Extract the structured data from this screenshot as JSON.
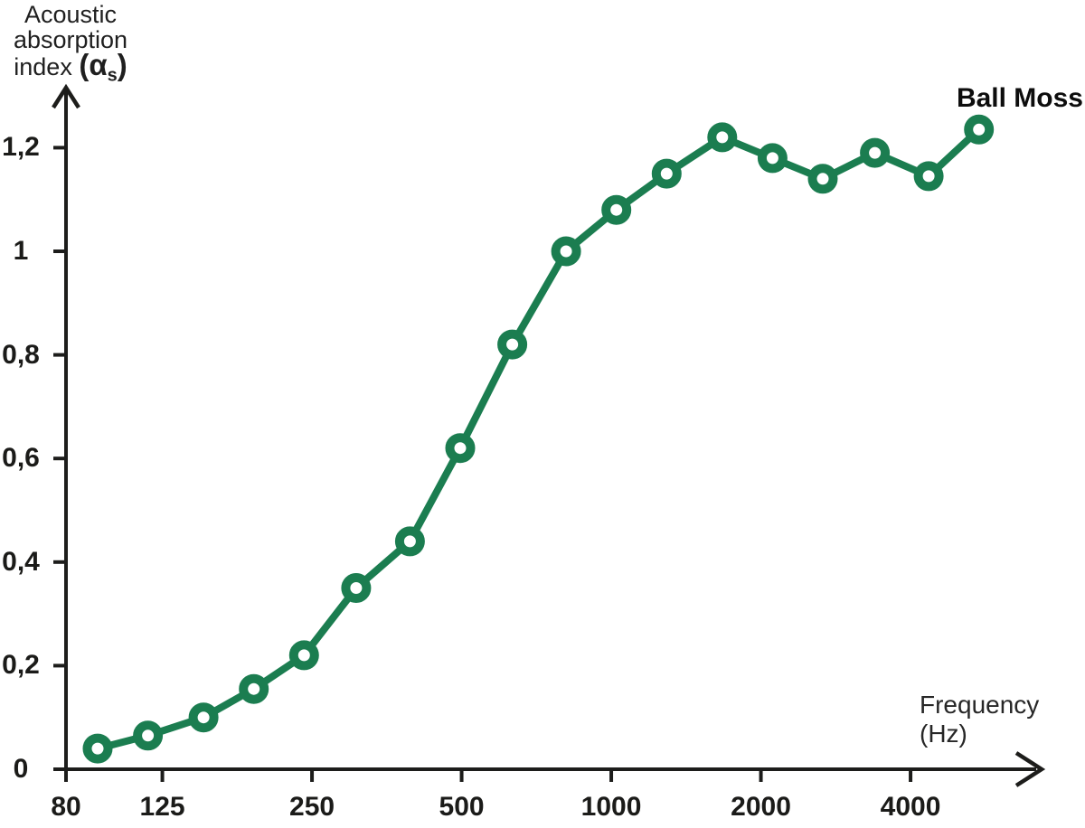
{
  "y_axis_title": {
    "line1": "Acoustic",
    "line2": "absorption",
    "line3_text": "index ",
    "line3_paren_alpha": "(α",
    "line3_sub": "s",
    "line3_close": ")"
  },
  "x_axis_title": {
    "line1": "Frequency",
    "line2": "(Hz)"
  },
  "series_label": "Ball Moss",
  "chart_data": {
    "type": "line",
    "title": "",
    "xlabel": "Frequency (Hz)",
    "ylabel": "Acoustic absorption index (αs)",
    "x_scale": "log",
    "grid": false,
    "legend_position": "annotation-top-right",
    "series": [
      {
        "name": "Ball Moss",
        "x": [
          100,
          125,
          160,
          200,
          250,
          315,
          400,
          500,
          630,
          800,
          1000,
          1250,
          1600,
          2000,
          2500,
          3150,
          4000,
          5000
        ],
        "values": [
          0.04,
          0.065,
          0.1,
          0.155,
          0.22,
          0.35,
          0.44,
          0.62,
          0.82,
          1.0,
          1.08,
          1.15,
          1.22,
          1.18,
          1.14,
          1.19,
          1.145,
          1.235
        ]
      }
    ],
    "x_ticks": [
      {
        "label": "80",
        "freq": 80
      },
      {
        "label": "125",
        "freq": 125
      },
      {
        "label": "250",
        "freq": 250
      },
      {
        "label": "500",
        "freq": 500
      },
      {
        "label": "1000",
        "freq": 1000
      },
      {
        "label": "2000",
        "freq": 2000
      },
      {
        "label": "4000",
        "freq": 4000
      }
    ],
    "y_ticks": [
      {
        "label": "0",
        "value": 0
      },
      {
        "label": "0,2",
        "value": 0.2
      },
      {
        "label": "0,4",
        "value": 0.4
      },
      {
        "label": "0,6",
        "value": 0.6
      },
      {
        "label": "0,8",
        "value": 0.8
      },
      {
        "label": "1",
        "value": 1.0
      },
      {
        "label": "1,2",
        "value": 1.2
      }
    ],
    "ylim": [
      0,
      1.3
    ],
    "marker": "open-circle",
    "colors": {
      "line": "#1b7d50",
      "marker_fill": "#ffffff",
      "axis": "#1d1d1b",
      "tick_text": "#1b1b19",
      "title_text": "#1f1f1f"
    }
  }
}
